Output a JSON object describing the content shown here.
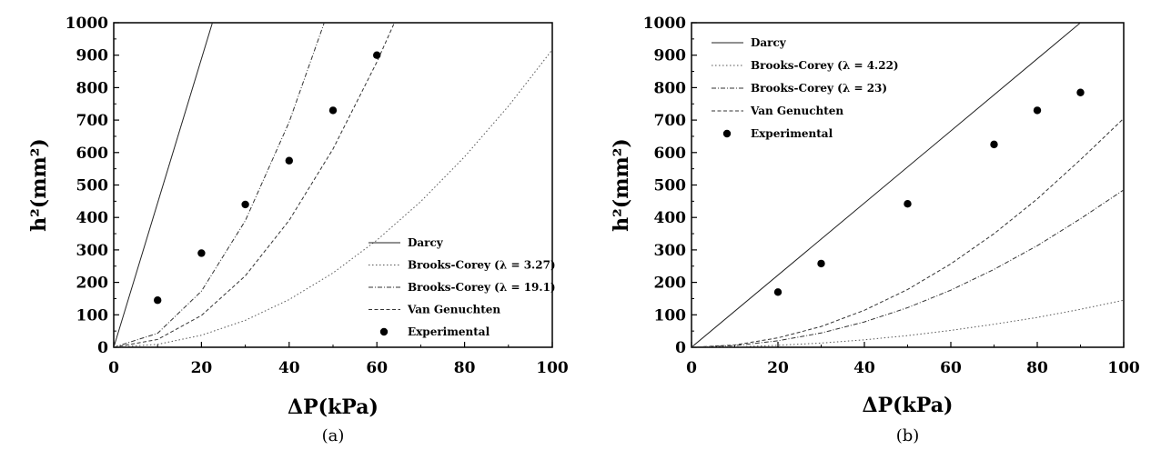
{
  "chart_data": [
    {
      "type": "line",
      "caption": "(a)",
      "xlabel": "ΔP(kPa)",
      "ylabel": "h²(mm²)",
      "xlim": [
        0,
        100
      ],
      "ylim": [
        0,
        1000
      ],
      "xticks": [
        0,
        20,
        40,
        60,
        80,
        100
      ],
      "yticks": [
        0,
        100,
        200,
        300,
        400,
        500,
        600,
        700,
        800,
        900,
        1000
      ],
      "grid": false,
      "legend_position": "bottom-right",
      "series": [
        {
          "name": "Darcy",
          "style": "solid",
          "x": [
            0,
            22.5
          ],
          "y": [
            0,
            1000
          ]
        },
        {
          "name": "Brooks-Corey (λ = 3.27)",
          "style": "dotted",
          "x": [
            0,
            10,
            20,
            30,
            40,
            50,
            60,
            70,
            80,
            90,
            100
          ],
          "y": [
            0,
            9,
            37,
            83,
            147,
            229,
            330,
            449,
            587,
            743,
            917
          ]
        },
        {
          "name": "Brooks-Corey (λ = 19.1)",
          "style": "dashdot",
          "x": [
            0,
            10,
            20,
            30,
            40,
            48
          ],
          "y": [
            0,
            43,
            173,
            390,
            694,
            1000
          ]
        },
        {
          "name": "Van Genuchten",
          "style": "dashed",
          "x": [
            0,
            10,
            20,
            30,
            40,
            50,
            60,
            64
          ],
          "y": [
            0,
            24,
            98,
            220,
            391,
            611,
            879,
            1000
          ]
        },
        {
          "name": "Experimental",
          "style": "marker",
          "x": [
            10,
            20,
            30,
            40,
            50,
            60
          ],
          "y": [
            145,
            290,
            440,
            575,
            730,
            900
          ]
        }
      ]
    },
    {
      "type": "line",
      "caption": "(b)",
      "xlabel": "ΔP(kPa)",
      "ylabel": "h²(mm²)",
      "xlim": [
        0,
        100
      ],
      "ylim": [
        0,
        1000
      ],
      "xticks": [
        0,
        20,
        40,
        60,
        80,
        100
      ],
      "yticks": [
        0,
        100,
        200,
        300,
        400,
        500,
        600,
        700,
        800,
        900,
        1000
      ],
      "grid": false,
      "legend_position": "top-left",
      "series": [
        {
          "name": "Darcy",
          "style": "solid",
          "x": [
            0,
            90
          ],
          "y": [
            0,
            1000
          ]
        },
        {
          "name": "Brooks-Corey (λ = 4.22)",
          "style": "dotted",
          "x": [
            0,
            10,
            20,
            30,
            40,
            50,
            60,
            70,
            80,
            90,
            100
          ],
          "y": [
            0,
            1,
            6,
            13,
            23,
            36,
            52,
            71,
            92,
            117,
            145
          ]
        },
        {
          "name": "Brooks-Corey (λ = 23)",
          "style": "dashdot",
          "x": [
            0,
            10,
            20,
            30,
            40,
            50,
            60,
            70,
            80,
            90,
            100
          ],
          "y": [
            0,
            5,
            20,
            44,
            78,
            122,
            176,
            240,
            313,
            396,
            485
          ]
        },
        {
          "name": "Van Genuchten",
          "style": "dashed",
          "x": [
            0,
            10,
            20,
            30,
            40,
            50,
            60,
            70,
            80,
            90,
            100
          ],
          "y": [
            0,
            7,
            29,
            64,
            114,
            178,
            257,
            350,
            457,
            578,
            705
          ]
        },
        {
          "name": "Experimental",
          "style": "marker",
          "x": [
            20,
            30,
            50,
            70,
            80,
            90
          ],
          "y": [
            170,
            258,
            442,
            625,
            730,
            785
          ]
        }
      ]
    }
  ]
}
